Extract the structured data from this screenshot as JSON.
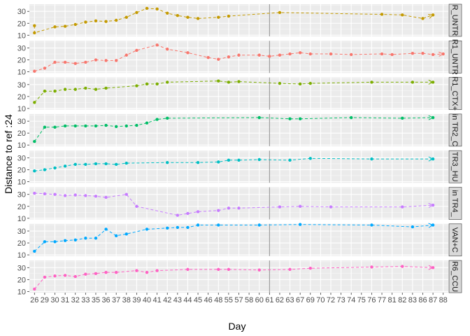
{
  "chart_data": {
    "type": "line",
    "xlabel": "Day",
    "ylabel": "Distance to ref :24",
    "x_ticks": [
      26,
      29,
      30,
      31,
      32,
      33,
      35,
      36,
      37,
      38,
      39,
      40,
      41,
      42,
      43,
      44,
      45,
      46,
      48,
      55,
      57,
      58,
      60,
      61,
      62,
      63,
      67,
      69,
      70,
      72,
      73,
      74,
      75,
      76,
      77,
      81,
      82,
      83,
      86,
      87,
      88
    ],
    "y_ticks": [
      10,
      20,
      30
    ],
    "ylim": [
      9,
      36
    ],
    "grid": true,
    "panel_background": "#ebebeb",
    "strip_background": "#d9d9d9",
    "panels": [
      {
        "strip": "R_UNTR",
        "color": "#C49A00",
        "points": [
          [
            26,
            18
          ],
          [
            26,
            12
          ],
          [
            30,
            17
          ],
          [
            31,
            17.5
          ],
          [
            32,
            19
          ],
          [
            33,
            21
          ],
          [
            35,
            22
          ],
          [
            36,
            21.5
          ],
          [
            37,
            22.5
          ],
          [
            38,
            25
          ],
          [
            39,
            29
          ],
          [
            40,
            32.5
          ],
          [
            41,
            32
          ],
          [
            42,
            28.5
          ],
          [
            43,
            26.5
          ],
          [
            44,
            25
          ],
          [
            45,
            24
          ],
          [
            48,
            25
          ],
          [
            55,
            26
          ],
          [
            62,
            29
          ],
          [
            77,
            27.5
          ],
          [
            82,
            27
          ],
          [
            86,
            24
          ],
          [
            87,
            27
          ]
        ]
      },
      {
        "strip": "R1_UNTR",
        "color": "#F8766D",
        "points": [
          [
            26,
            10.5
          ],
          [
            29,
            13
          ],
          [
            30,
            18
          ],
          [
            31,
            18
          ],
          [
            32,
            17
          ],
          [
            33,
            18
          ],
          [
            35,
            20
          ],
          [
            36,
            19.5
          ],
          [
            37,
            19.5
          ],
          [
            38,
            24
          ],
          [
            39,
            28
          ],
          [
            41,
            32.5
          ],
          [
            42,
            29
          ],
          [
            44,
            26
          ],
          [
            46,
            22
          ],
          [
            48,
            20.5
          ],
          [
            55,
            22.5
          ],
          [
            57,
            24
          ],
          [
            60,
            24
          ],
          [
            61,
            23
          ],
          [
            62,
            24
          ],
          [
            63,
            25
          ],
          [
            67,
            26
          ],
          [
            69,
            25
          ],
          [
            72,
            25
          ],
          [
            74,
            24.5
          ],
          [
            77,
            25
          ],
          [
            81,
            24.5
          ],
          [
            83,
            25.5
          ],
          [
            86,
            25.5
          ],
          [
            87,
            24.5
          ],
          [
            88,
            25
          ]
        ]
      },
      {
        "strip": "R1_CTX+",
        "color": "#7CAE00",
        "points": [
          [
            26,
            15
          ],
          [
            29,
            24.5
          ],
          [
            30,
            24.5
          ],
          [
            31,
            26
          ],
          [
            32,
            26
          ],
          [
            33,
            27
          ],
          [
            35,
            26
          ],
          [
            36,
            27
          ],
          [
            39,
            29
          ],
          [
            40,
            30.5
          ],
          [
            41,
            30.5
          ],
          [
            42,
            32
          ],
          [
            48,
            33
          ],
          [
            55,
            32
          ],
          [
            57,
            32.5
          ],
          [
            62,
            31
          ],
          [
            67,
            30.5
          ],
          [
            69,
            31
          ],
          [
            76,
            32
          ],
          [
            83,
            32
          ],
          [
            87,
            32
          ]
        ]
      },
      {
        "strip": "in TR2_C",
        "color": "#00BE67",
        "points": [
          [
            26,
            13
          ],
          [
            29,
            25
          ],
          [
            30,
            25
          ],
          [
            31,
            26
          ],
          [
            32,
            26
          ],
          [
            33,
            26
          ],
          [
            35,
            26
          ],
          [
            36,
            26.5
          ],
          [
            37,
            25.5
          ],
          [
            38,
            26
          ],
          [
            39,
            26.5
          ],
          [
            40,
            28.5
          ],
          [
            41,
            31.5
          ],
          [
            42,
            32.5
          ],
          [
            60,
            33
          ],
          [
            64,
            32
          ],
          [
            67,
            32
          ],
          [
            74,
            33
          ],
          [
            82,
            32.5
          ],
          [
            87,
            33
          ]
        ]
      },
      {
        "strip": "TR3_HU",
        "color": "#00BFC4",
        "points": [
          [
            26,
            19
          ],
          [
            29,
            20
          ],
          [
            30,
            21.5
          ],
          [
            31,
            23
          ],
          [
            32,
            24.5
          ],
          [
            33,
            24.5
          ],
          [
            35,
            25
          ],
          [
            36,
            25
          ],
          [
            37,
            24.5
          ],
          [
            38,
            25.5
          ],
          [
            42,
            26
          ],
          [
            45,
            26
          ],
          [
            48,
            26.5
          ],
          [
            55,
            28
          ],
          [
            57,
            28
          ],
          [
            60,
            28.5
          ],
          [
            64,
            28
          ],
          [
            69,
            29.5
          ],
          [
            76,
            29
          ],
          [
            87,
            29
          ]
        ]
      },
      {
        "strip": "in TR4_",
        "color": "#C77CFF",
        "points": [
          [
            26,
            31
          ],
          [
            29,
            30.5
          ],
          [
            30,
            30
          ],
          [
            31,
            29
          ],
          [
            32,
            29.5
          ],
          [
            33,
            29
          ],
          [
            35,
            28.5
          ],
          [
            36,
            27.5
          ],
          [
            38,
            30
          ],
          [
            39,
            20
          ],
          [
            43,
            12.5
          ],
          [
            44,
            14
          ],
          [
            45,
            15.5
          ],
          [
            48,
            16.5
          ],
          [
            55,
            18.5
          ],
          [
            57,
            18.5
          ],
          [
            62,
            19.5
          ],
          [
            67,
            20
          ],
          [
            72,
            19.5
          ],
          [
            82,
            19.5
          ],
          [
            87,
            21
          ]
        ]
      },
      {
        "strip": "VAN+C",
        "color": "#00A9FF",
        "points": [
          [
            26,
            13
          ],
          [
            29,
            21
          ],
          [
            30,
            21
          ],
          [
            31,
            22
          ],
          [
            32,
            22.5
          ],
          [
            33,
            24
          ],
          [
            35,
            24
          ],
          [
            36,
            31.5
          ],
          [
            37,
            26
          ],
          [
            38,
            27.5
          ],
          [
            40,
            31.5
          ],
          [
            42,
            32.5
          ],
          [
            43,
            33
          ],
          [
            44,
            33
          ],
          [
            45,
            35
          ],
          [
            48,
            35
          ],
          [
            60,
            35
          ],
          [
            67,
            35.5
          ],
          [
            76,
            35
          ],
          [
            83,
            33.5
          ],
          [
            87,
            35
          ]
        ]
      },
      {
        "strip": "R6_CCU",
        "color": "#FF61C3",
        "points": [
          [
            26,
            12
          ],
          [
            29,
            22
          ],
          [
            30,
            23
          ],
          [
            31,
            23.5
          ],
          [
            32,
            22.5
          ],
          [
            33,
            24.5
          ],
          [
            35,
            25
          ],
          [
            36,
            26
          ],
          [
            37,
            26
          ],
          [
            39,
            27.5
          ],
          [
            40,
            26
          ],
          [
            41,
            27.5
          ],
          [
            44,
            28.5
          ],
          [
            48,
            28.5
          ],
          [
            55,
            28.5
          ],
          [
            60,
            28
          ],
          [
            64,
            28.5
          ],
          [
            69,
            29.5
          ],
          [
            76,
            30.5
          ],
          [
            82,
            31
          ],
          [
            87,
            30
          ]
        ]
      }
    ]
  }
}
